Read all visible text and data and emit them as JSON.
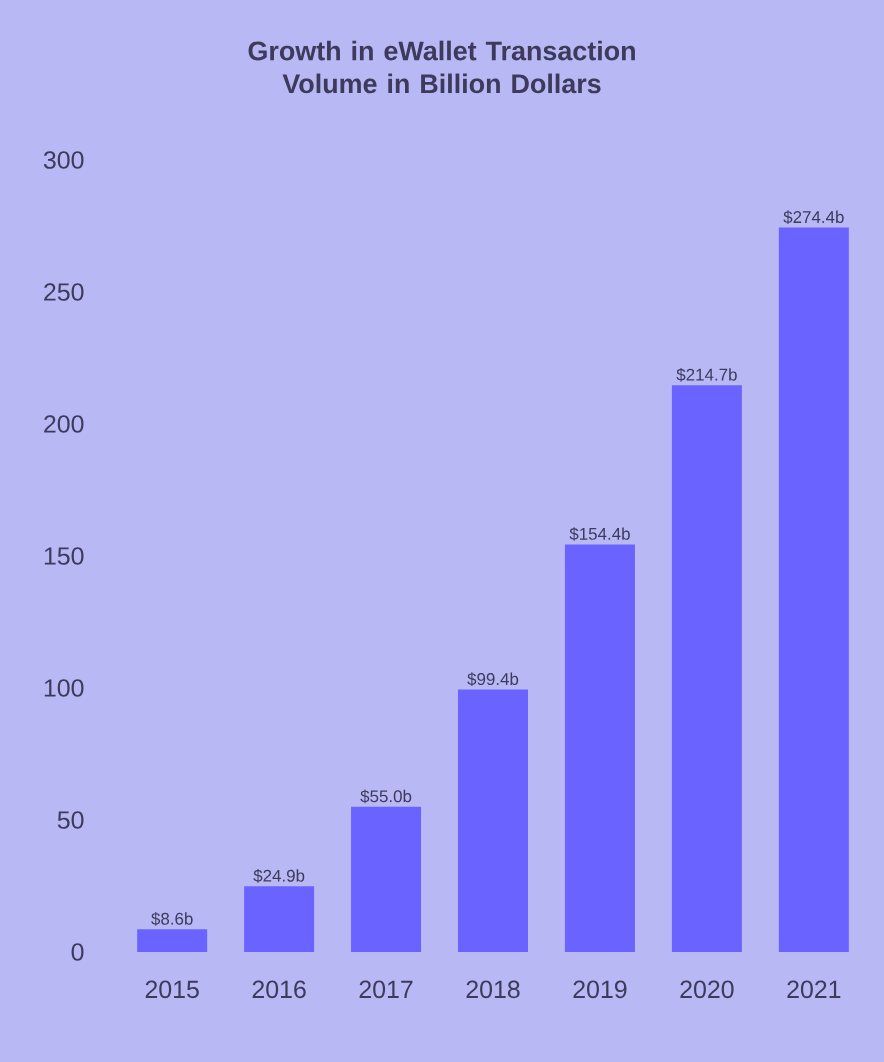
{
  "chart_data": {
    "type": "bar",
    "title": "Growth in eWallet Transaction Volume in Billion Dollars",
    "categories": [
      "2015",
      "2016",
      "2017",
      "2018",
      "2019",
      "2020",
      "2021"
    ],
    "values": [
      8.6,
      24.9,
      55.0,
      99.4,
      154.4,
      214.7,
      274.4
    ],
    "value_labels": [
      "$8.6b",
      "$24.9b",
      "$55.0b",
      "$99.4b",
      "$154.4b",
      "$214.7b",
      "$274.4b"
    ],
    "color": "#6b63ff",
    "ylim": [
      0,
      300
    ],
    "yticks": [
      0,
      50,
      100,
      150,
      200,
      250,
      300
    ],
    "grid": false
  }
}
